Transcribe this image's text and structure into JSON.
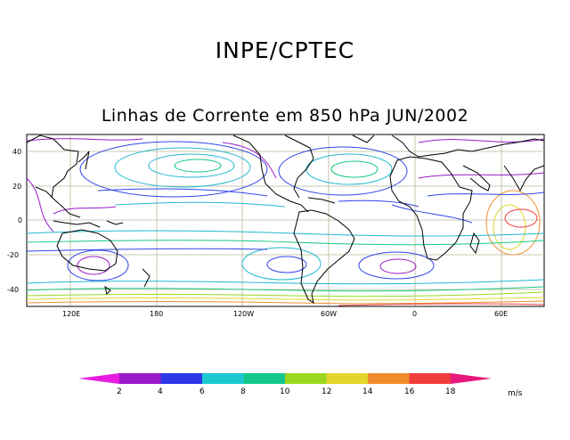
{
  "header": {
    "title": "INPE/CPTEC"
  },
  "map": {
    "title": "Linhas de Corrente em 850 hPa JUN/2002",
    "lat_labels": [
      "40",
      "20",
      "0",
      "-20",
      "-40"
    ],
    "lon_labels": [
      "120E",
      "180",
      "120W",
      "60W",
      "0",
      "60E"
    ],
    "stream_colors": {
      "purple": "#9a1ac8",
      "blue": "#3044e8",
      "cyan": "#20b8d0",
      "green": "#18c880",
      "lime": "#98d820",
      "yellow": "#e0d830",
      "orange": "#f09030",
      "red": "#f04040",
      "magenta": "#e81888"
    }
  },
  "colorbar": {
    "labels": [
      "2",
      "4",
      "6",
      "8",
      "10",
      "12",
      "14",
      "16",
      "18"
    ],
    "colors": [
      "#e81ce0",
      "#9a1ac8",
      "#2e36e8",
      "#1cc8d0",
      "#14c88c",
      "#9ad820",
      "#e2d62c",
      "#f08c2c",
      "#f23c3c",
      "#e8187c"
    ],
    "units": "m/s"
  }
}
